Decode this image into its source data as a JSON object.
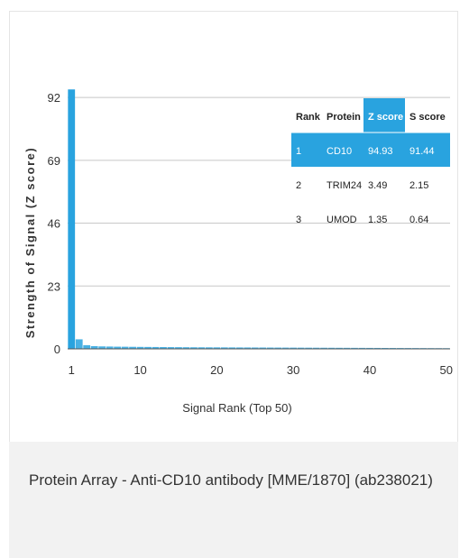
{
  "chart_data": {
    "type": "bar",
    "xlabel": "Signal Rank (Top 50)",
    "ylabel": "Strength of Signal (Z score)",
    "yticks": [
      0,
      23,
      46,
      69,
      92
    ],
    "xticks": [
      1,
      10,
      20,
      30,
      40,
      50
    ],
    "ylim": [
      0,
      95
    ],
    "xlim": [
      0.5,
      50.5
    ],
    "grid": true,
    "bar_color": "#29a3df",
    "x": [
      1,
      2,
      3,
      4,
      5,
      6,
      7,
      8,
      9,
      10,
      11,
      12,
      13,
      14,
      15,
      16,
      17,
      18,
      19,
      20,
      21,
      22,
      23,
      24,
      25,
      26,
      27,
      28,
      29,
      30,
      31,
      32,
      33,
      34,
      35,
      36,
      37,
      38,
      39,
      40,
      41,
      42,
      43,
      44,
      45,
      46,
      47,
      48,
      49,
      50
    ],
    "values": [
      94.93,
      3.49,
      1.35,
      1.0,
      0.9,
      0.85,
      0.8,
      0.78,
      0.75,
      0.72,
      0.7,
      0.68,
      0.66,
      0.64,
      0.62,
      0.6,
      0.58,
      0.57,
      0.56,
      0.55,
      0.54,
      0.53,
      0.52,
      0.51,
      0.5,
      0.49,
      0.48,
      0.47,
      0.46,
      0.45,
      0.44,
      0.43,
      0.42,
      0.41,
      0.4,
      0.39,
      0.38,
      0.37,
      0.36,
      0.35,
      0.34,
      0.33,
      0.32,
      0.31,
      0.3,
      0.29,
      0.28,
      0.27,
      0.26,
      0.25
    ]
  },
  "table": {
    "headers": [
      "Rank",
      "Protein",
      "Z score",
      "S score"
    ],
    "rows": [
      [
        "1",
        "CD10",
        "94.93",
        "91.44"
      ],
      [
        "2",
        "TRIM24",
        "3.49",
        "2.15"
      ],
      [
        "3",
        "UMOD",
        "1.35",
        "0.64"
      ]
    ],
    "highlight_color": "#29a3df"
  },
  "caption": "Protein Array - Anti-CD10 antibody [MME/1870] (ab238021)"
}
